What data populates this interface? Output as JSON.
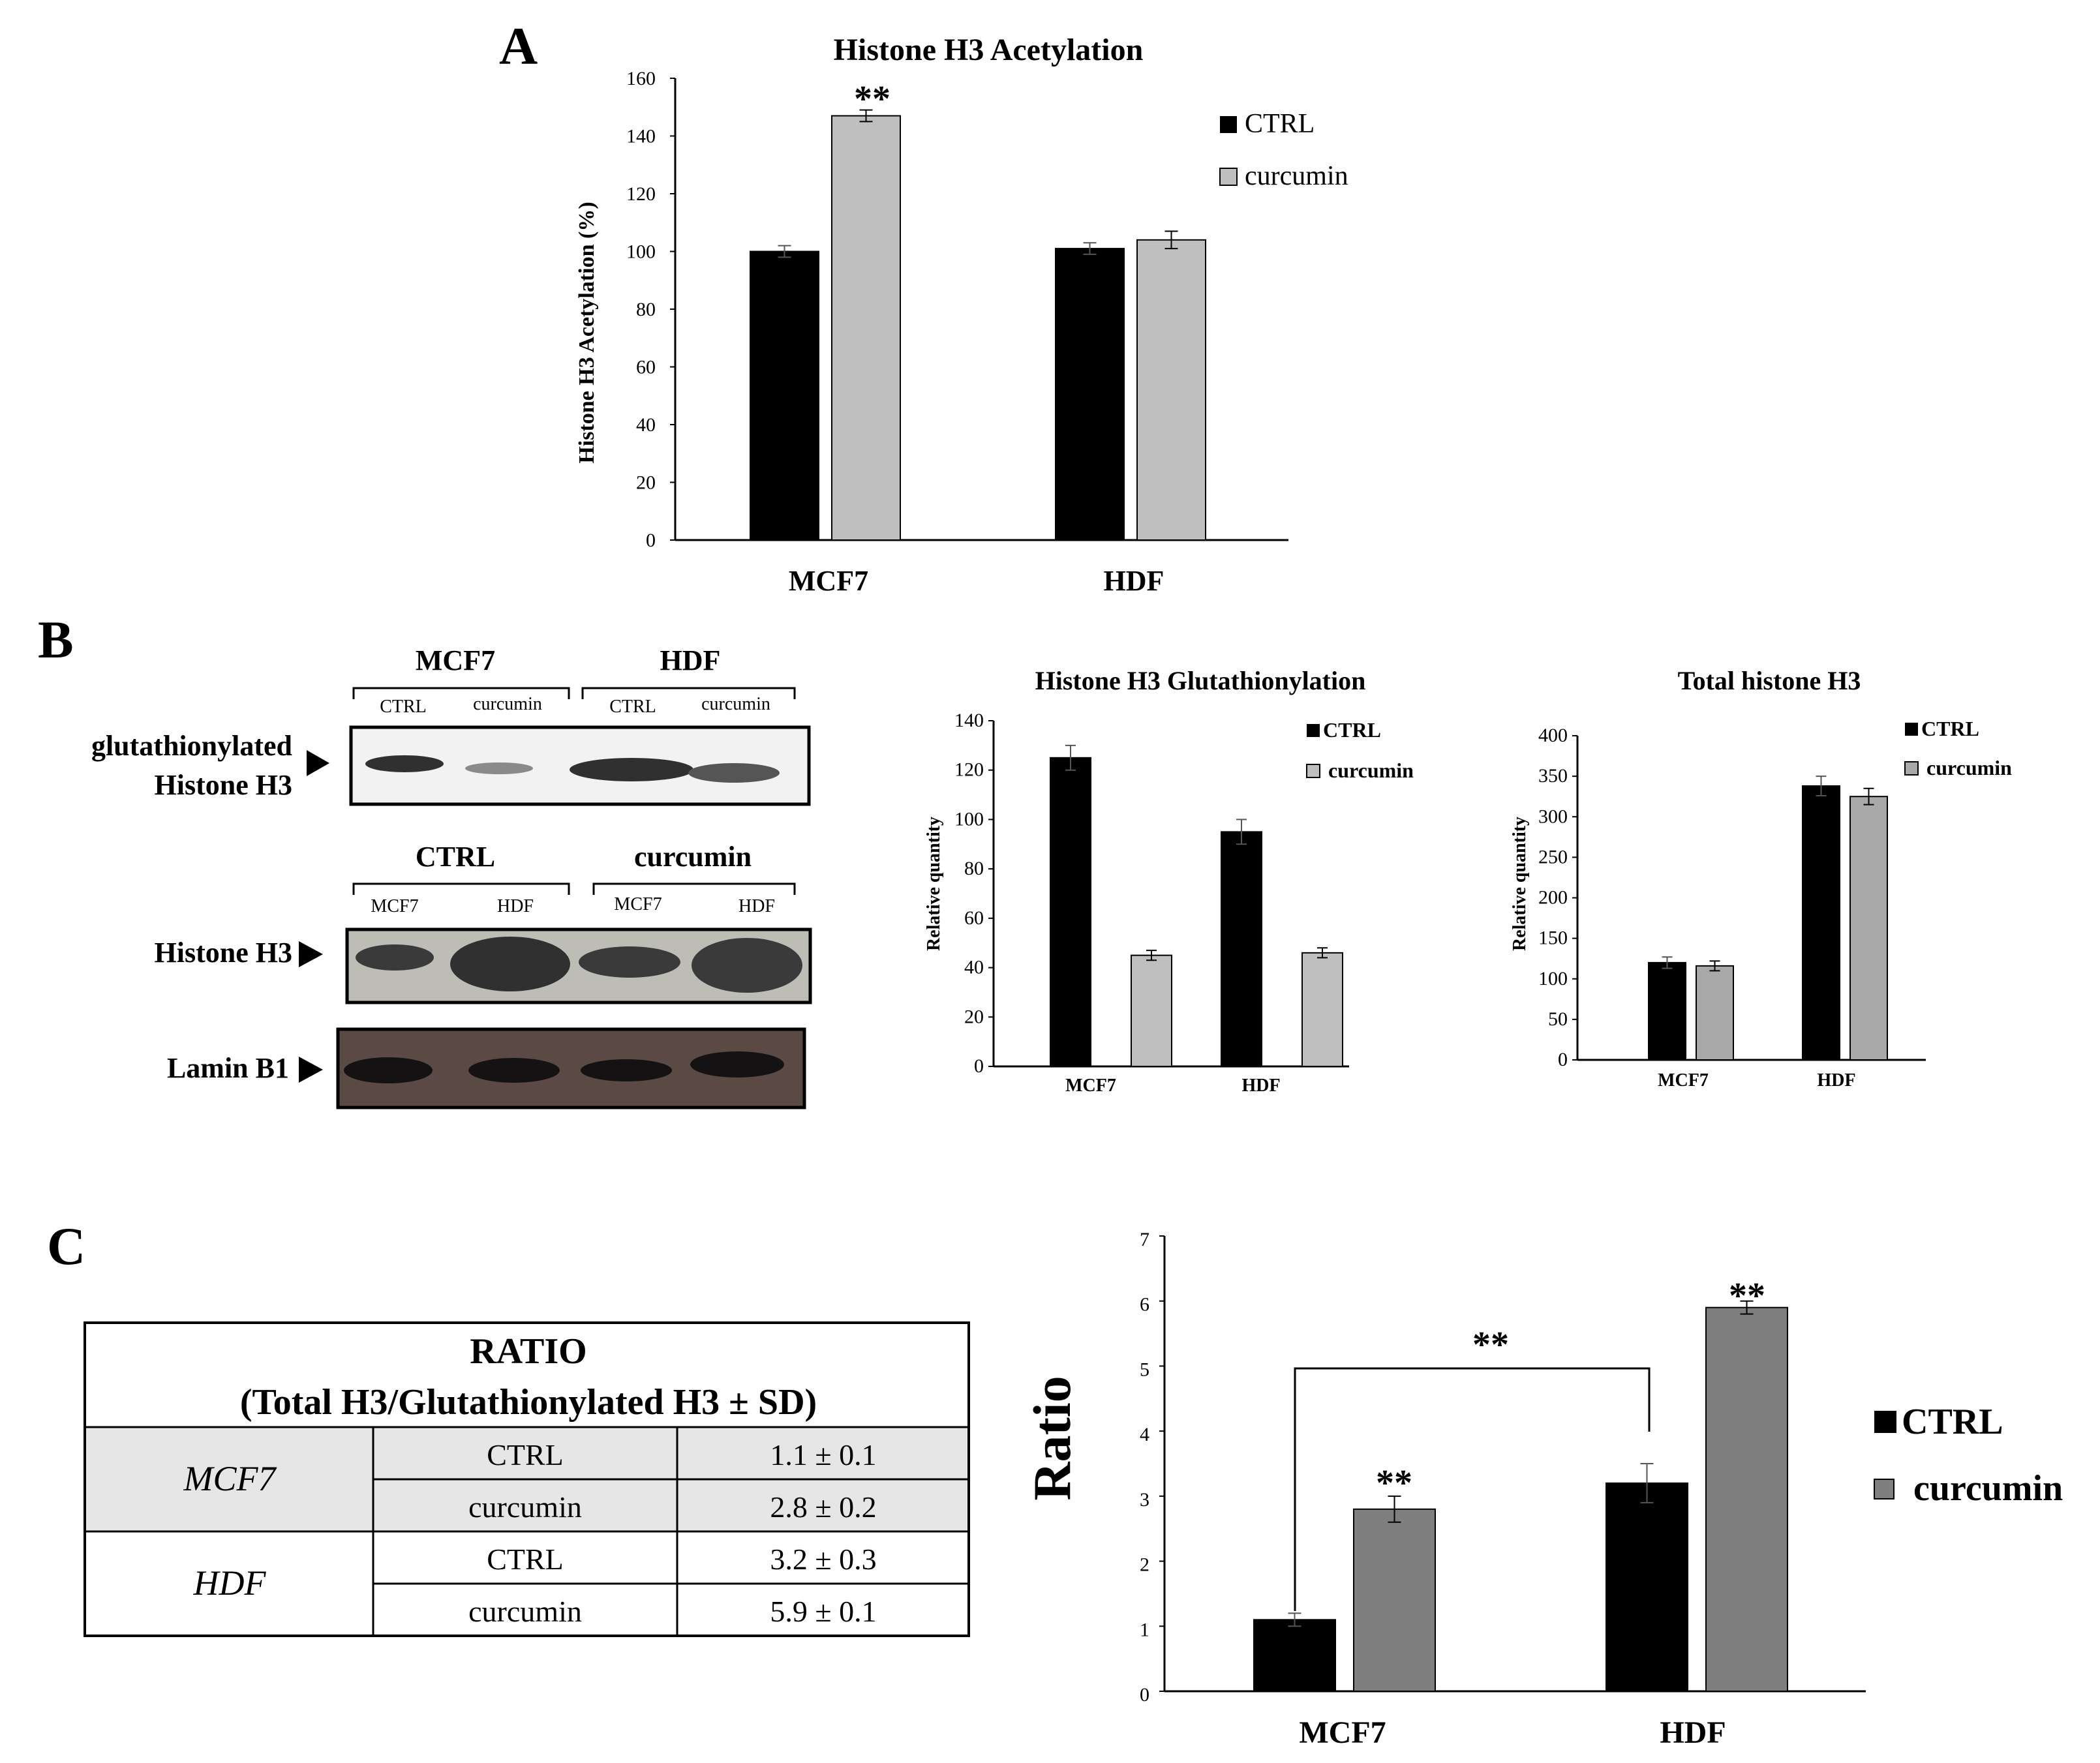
{
  "panels": {
    "a": "A",
    "b": "B",
    "c": "C"
  },
  "colors": {
    "ctrl": "#000000",
    "curcumin_light": "#bfbfbf",
    "curcumin_gray": "#a9a9a9",
    "curcumin_dark": "#7f7f7f",
    "shade": "#e6e6e6"
  },
  "blots": {
    "glut": {
      "group_left": "MCF7",
      "group_right": "HDF",
      "lanes": [
        "CTRL",
        "curcumin",
        "CTRL",
        "curcumin"
      ],
      "label_line1": "glutathionylated",
      "label_line2": "Histone H3"
    },
    "h3": {
      "group_left": "CTRL",
      "group_right": "curcumin",
      "lanes": [
        "MCF7",
        "HDF",
        "MCF7",
        "HDF"
      ],
      "label": "Histone H3"
    },
    "lamin": {
      "label": "Lamin B1"
    }
  },
  "table": {
    "title": "RATIO",
    "subtitle": "(Total H3/Glutathionylated H3 ± SD)",
    "rows": [
      {
        "cell": "MCF7",
        "treatment": "CTRL",
        "value": "1.1 ± 0.1"
      },
      {
        "cell": "MCF7",
        "treatment": "curcumin",
        "value": "2.8 ± 0.2"
      },
      {
        "cell": "HDF",
        "treatment": "CTRL",
        "value": "3.2 ± 0.3"
      },
      {
        "cell": "HDF",
        "treatment": "curcumin",
        "value": "5.9 ± 0.1"
      }
    ]
  },
  "chart_data": [
    {
      "id": "acetylation",
      "type": "bar",
      "title": "Histone H3 Acetylation",
      "xlabel": "",
      "ylabel": "Histone H3 Acetylation (%)",
      "ylim": [
        0,
        160
      ],
      "yticks": [
        0,
        20,
        40,
        60,
        80,
        100,
        120,
        140,
        160
      ],
      "categories": [
        "MCF7",
        "HDF"
      ],
      "series": [
        {
          "name": "CTRL",
          "values": [
            100,
            101
          ],
          "errors": [
            2,
            2
          ]
        },
        {
          "name": "curcumin",
          "values": [
            147,
            104
          ],
          "errors": [
            2,
            3
          ]
        }
      ],
      "annotations": [
        {
          "text": "**",
          "category": "MCF7",
          "series": "curcumin"
        }
      ],
      "legend": "top-right"
    },
    {
      "id": "glutathionylation",
      "type": "bar",
      "title": "Histone H3 Glutathionylation",
      "xlabel": "",
      "ylabel": "Relative quantity",
      "ylim": [
        0,
        140
      ],
      "yticks": [
        0,
        20,
        40,
        60,
        80,
        100,
        120,
        140
      ],
      "categories": [
        "MCF7",
        "HDF"
      ],
      "series": [
        {
          "name": "CTRL",
          "values": [
            125,
            95
          ],
          "errors": [
            5,
            5
          ]
        },
        {
          "name": "curcumin",
          "values": [
            45,
            46
          ],
          "errors": [
            2,
            2
          ]
        }
      ],
      "legend": "top-right"
    },
    {
      "id": "total_h3",
      "type": "bar",
      "title": "Total histone H3",
      "xlabel": "",
      "ylabel": "Relative quantity",
      "ylim": [
        0,
        400
      ],
      "yticks": [
        0,
        50,
        100,
        150,
        200,
        250,
        300,
        350,
        400
      ],
      "categories": [
        "MCF7",
        "HDF"
      ],
      "series": [
        {
          "name": "CTRL",
          "values": [
            120,
            338
          ],
          "errors": [
            7,
            12
          ]
        },
        {
          "name": "curcumin",
          "values": [
            116,
            325
          ],
          "errors": [
            6,
            10
          ]
        }
      ],
      "legend": "top-right"
    },
    {
      "id": "ratio",
      "type": "bar",
      "title": "",
      "xlabel": "",
      "ylabel": "Ratio",
      "ylim": [
        0,
        7
      ],
      "yticks": [
        0,
        1,
        2,
        3,
        4,
        5,
        6,
        7
      ],
      "categories": [
        "MCF7",
        "HDF"
      ],
      "series": [
        {
          "name": "CTRL",
          "values": [
            1.1,
            3.2
          ],
          "errors": [
            0.1,
            0.3
          ]
        },
        {
          "name": "curcumin",
          "values": [
            2.8,
            5.9
          ],
          "errors": [
            0.2,
            0.1
          ]
        }
      ],
      "annotations": [
        {
          "text": "**",
          "category": "MCF7",
          "series": "curcumin"
        },
        {
          "text": "**",
          "category": "HDF",
          "series": "curcumin"
        },
        {
          "text": "**",
          "between": [
            "MCF7 CTRL",
            "HDF CTRL"
          ]
        }
      ],
      "legend": "right"
    }
  ]
}
